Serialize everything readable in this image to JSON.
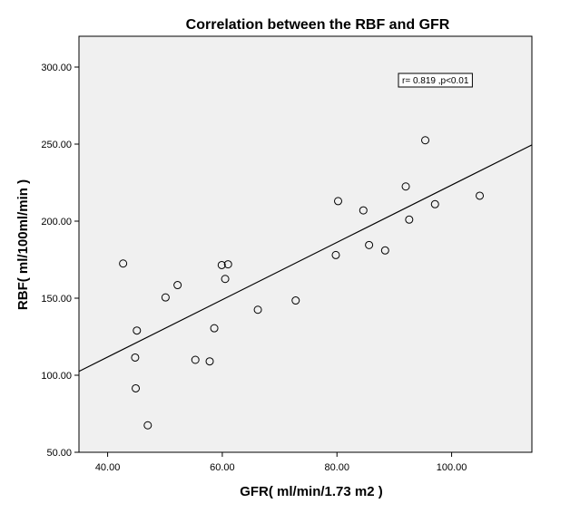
{
  "chart_data": {
    "type": "scatter",
    "title": "Correlation between the RBF and GFR",
    "xlabel": "GFR( ml/min/1.73 m2 )",
    "ylabel": "RBF( ml/100ml/min )",
    "xlim": [
      35,
      114
    ],
    "ylim": [
      50,
      320
    ],
    "x_ticks": [
      40,
      60,
      80,
      100
    ],
    "y_ticks": [
      50,
      100,
      150,
      200,
      250,
      300
    ],
    "x_tick_labels": [
      "40.00",
      "60.00",
      "80.00",
      "100.00"
    ],
    "y_tick_labels": [
      "50.00",
      "100.00",
      "150.00",
      "200.00",
      "250.00",
      "300.00"
    ],
    "grid": false,
    "background_color": "#f0f0f0",
    "marker": "open-circle",
    "points": [
      {
        "x": 42.7,
        "y": 172.5
      },
      {
        "x": 44.8,
        "y": 111.5
      },
      {
        "x": 45.1,
        "y": 129.0
      },
      {
        "x": 44.9,
        "y": 91.5
      },
      {
        "x": 47.0,
        "y": 67.5
      },
      {
        "x": 50.1,
        "y": 150.5
      },
      {
        "x": 52.2,
        "y": 158.5
      },
      {
        "x": 55.3,
        "y": 110.0
      },
      {
        "x": 57.8,
        "y": 109.0
      },
      {
        "x": 58.6,
        "y": 130.5
      },
      {
        "x": 59.9,
        "y": 171.5
      },
      {
        "x": 60.5,
        "y": 162.5
      },
      {
        "x": 61.0,
        "y": 172.0
      },
      {
        "x": 66.2,
        "y": 142.5
      },
      {
        "x": 72.8,
        "y": 148.5
      },
      {
        "x": 79.8,
        "y": 178.0
      },
      {
        "x": 80.2,
        "y": 213.0
      },
      {
        "x": 84.6,
        "y": 207.0
      },
      {
        "x": 85.6,
        "y": 184.5
      },
      {
        "x": 88.4,
        "y": 181.0
      },
      {
        "x": 92.0,
        "y": 222.5
      },
      {
        "x": 92.6,
        "y": 201.0
      },
      {
        "x": 95.4,
        "y": 252.5
      },
      {
        "x": 97.1,
        "y": 211.0
      },
      {
        "x": 104.9,
        "y": 216.5
      }
    ],
    "fit_line": {
      "x": [
        35,
        114
      ],
      "y": [
        102.5,
        249.5
      ]
    },
    "annotation": "r= 0.819 ,p<0.01",
    "annotation_position": "top-right"
  }
}
